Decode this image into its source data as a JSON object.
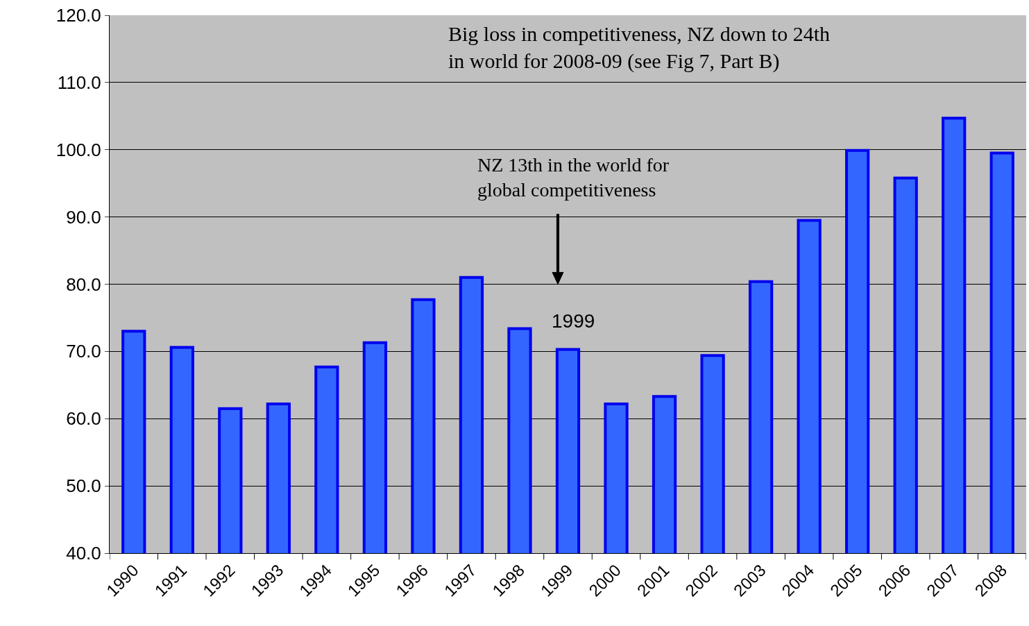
{
  "chart_data": {
    "type": "bar",
    "categories": [
      "1990",
      "1991",
      "1992",
      "1993",
      "1994",
      "1995",
      "1996",
      "1997",
      "1998",
      "1999",
      "2000",
      "2001",
      "2002",
      "2003",
      "2004",
      "2005",
      "2006",
      "2007",
      "2008"
    ],
    "values": [
      73.0,
      70.6,
      61.5,
      62.2,
      67.7,
      71.3,
      77.7,
      81.0,
      73.4,
      70.3,
      62.2,
      63.3,
      69.4,
      80.4,
      89.5,
      99.9,
      95.8,
      104.7,
      99.5
    ],
    "color": "#3366ff",
    "ylim": [
      40,
      120
    ],
    "yticks": [
      {
        "value": 40,
        "label": "40.0"
      },
      {
        "value": 50,
        "label": "50.0"
      },
      {
        "value": 60,
        "label": "60.0"
      },
      {
        "value": 70,
        "label": "70.0"
      },
      {
        "value": 80,
        "label": "80.0"
      },
      {
        "value": 90,
        "label": "90.0"
      },
      {
        "value": 100,
        "label": "100.0"
      },
      {
        "value": 110,
        "label": "110.0"
      },
      {
        "value": 120,
        "label": "120.0"
      }
    ],
    "grid": "y",
    "annotations": [
      "Big loss in competitiveness, NZ down to 24th\nin world for 2008-09 (see Fig 7, Part B)",
      "NZ 13th in the world for\nglobal competitiveness",
      "1999"
    ]
  }
}
